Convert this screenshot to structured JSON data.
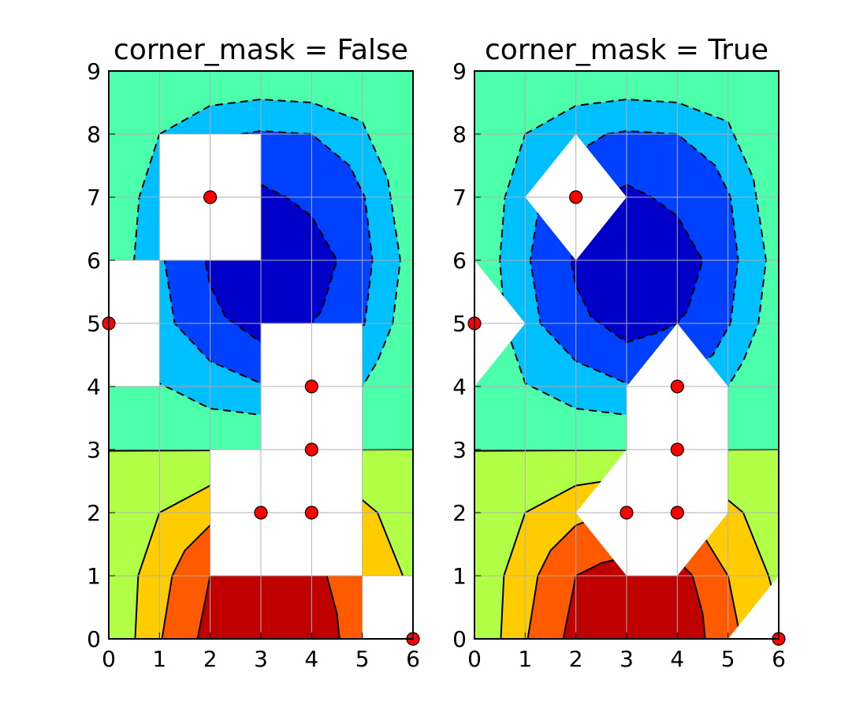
{
  "chart_data": [
    {
      "type": "scatter",
      "title": "corner_mask = False",
      "x": [
        2,
        0,
        4,
        4,
        4,
        3,
        6
      ],
      "y": [
        7,
        5,
        4,
        3,
        2,
        2,
        0
      ],
      "color": "#ff0000",
      "xlim": [
        0,
        6
      ],
      "ylim": [
        0,
        9
      ],
      "xticks": [
        0,
        1,
        2,
        3,
        4,
        5,
        6
      ],
      "yticks": [
        0,
        1,
        2,
        3,
        4,
        5,
        6,
        7,
        8,
        9
      ],
      "grid": true
    },
    {
      "type": "scatter",
      "title": "corner_mask = True",
      "x": [
        2,
        0,
        4,
        4,
        4,
        3,
        6
      ],
      "y": [
        7,
        5,
        4,
        3,
        2,
        2,
        0
      ],
      "color": "#ff0000",
      "xlim": [
        0,
        6
      ],
      "ylim": [
        0,
        9
      ],
      "xticks": [
        0,
        1,
        2,
        3,
        4,
        5,
        6
      ],
      "yticks": [
        0,
        1,
        2,
        3,
        4,
        5,
        6,
        7,
        8,
        9
      ],
      "grid": true
    }
  ]
}
